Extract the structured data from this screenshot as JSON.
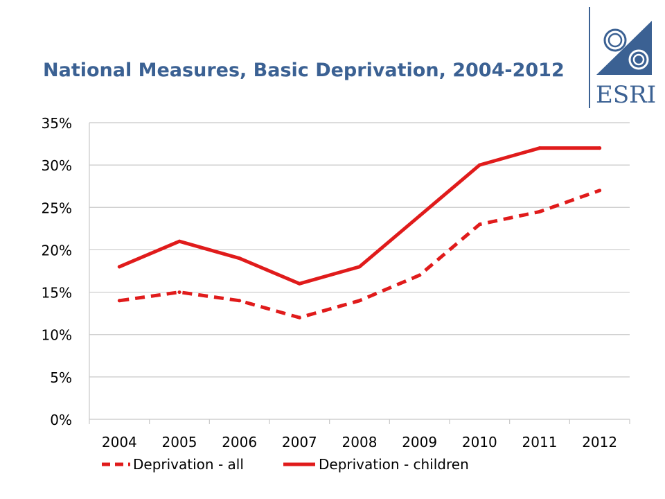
{
  "header": {
    "title": "National Measures, Basic Deprivation, 2004-2012",
    "logo_text": "ESRI"
  },
  "colors": {
    "title": "#3b6193",
    "series": "#e01b1b",
    "grid": "#c8c8c8",
    "logo": "#3b6193"
  },
  "chart_data": {
    "type": "line",
    "categories": [
      "2004",
      "2005",
      "2006",
      "2007",
      "2008",
      "2009",
      "2010",
      "2011",
      "2012"
    ],
    "ylim": [
      0,
      35
    ],
    "yticks": [
      0,
      5,
      10,
      15,
      20,
      25,
      30,
      35
    ],
    "ytick_labels": [
      "0%",
      "5%",
      "10%",
      "15%",
      "20%",
      "25%",
      "30%",
      "35%"
    ],
    "grid": true,
    "legend_position": "bottom",
    "series": [
      {
        "name": "Deprivation - all",
        "values": [
          14,
          15,
          14,
          12,
          14,
          17,
          23,
          24.5,
          27
        ],
        "style": "dashed"
      },
      {
        "name": "Deprivation - children",
        "values": [
          18,
          21,
          19,
          16,
          18,
          24,
          30,
          32,
          32
        ],
        "style": "solid"
      }
    ]
  }
}
